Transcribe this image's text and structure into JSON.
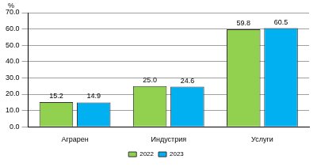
{
  "chart_data": {
    "type": "bar",
    "y_label": "%",
    "categories": [
      "Аграрен",
      "Индустрия",
      "Услуги"
    ],
    "series": [
      {
        "name": "2022",
        "color": "#92d050",
        "values": [
          15.2,
          25.0,
          59.8
        ],
        "value_labels": [
          "15.2",
          "25.0",
          "59.8"
        ]
      },
      {
        "name": "2023",
        "color": "#00b0f0",
        "values": [
          14.9,
          24.6,
          60.5
        ],
        "value_labels": [
          "14.9",
          "24.6",
          "60.5"
        ]
      }
    ],
    "ylim": [
      0,
      70
    ],
    "yticks": [
      {
        "value": 0,
        "label": "0.0"
      },
      {
        "value": 10,
        "label": "10.0"
      },
      {
        "value": 20,
        "label": "20.0"
      },
      {
        "value": 30,
        "label": "30.0"
      },
      {
        "value": 40,
        "label": "40.0"
      },
      {
        "value": 50,
        "label": "50.0"
      },
      {
        "value": 60,
        "label": "60.0"
      },
      {
        "value": 70,
        "label": "70.0"
      }
    ],
    "grid": true,
    "legend": "bottom",
    "data_labels": true
  }
}
